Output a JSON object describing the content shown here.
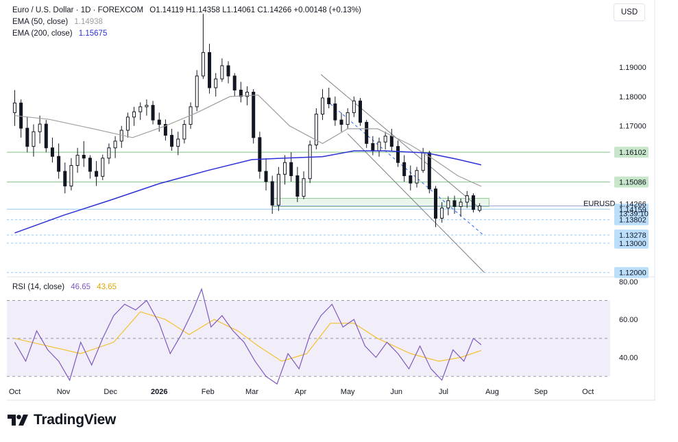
{
  "header": {
    "symbol": "Euro / U.S. Dollar · 1D · FOREXCOM",
    "ohlc": "O1.14119  H1.14358  L1.14061  C1.14266  +0.00148 (+0.13%)",
    "ema50_label": "EMA (50, close)",
    "ema50_value": "1.14938",
    "ema200_label": "EMA (200, close)",
    "ema200_value": "1.15675",
    "rsi_label": "RSI (14, close)",
    "rsi_value": "46.65",
    "rsi_ma_value": "43.65"
  },
  "currency_button": "USD",
  "brand": "TradingView",
  "colors": {
    "up": "#131722",
    "ema50": "#9e9e9e",
    "ema200": "#2b2fd6",
    "rsi": "#7e57c2",
    "rsi_ma": "#f2c22e",
    "support": "#81c784",
    "rsi_band": "#ede7f6"
  },
  "chart_data": {
    "type": "candlestick",
    "title": "Euro / U.S. Dollar · 1D · FOREXCOM",
    "x_tick_labels": [
      "Oct",
      "Nov",
      "Dec",
      "2026",
      "Feb",
      "Mar",
      "Apr",
      "May",
      "Jun",
      "Jul",
      "Aug",
      "Sep",
      "Oct"
    ],
    "price_axis": {
      "ticks": [
        1.19,
        1.18,
        1.17
      ],
      "tick_labels": [
        "1.19000",
        "1.18000",
        "1.17000"
      ],
      "range": [
        1.119,
        1.2115
      ]
    },
    "price_labels": [
      {
        "label": "1.16102",
        "value": 1.16102,
        "kind": "green"
      },
      {
        "label": "1.15086",
        "value": 1.15086,
        "kind": "green"
      },
      {
        "label": "1.14159",
        "value": 1.14159,
        "kind": "blue"
      },
      {
        "label": "1.13802",
        "value": 1.13802,
        "kind": "blue"
      },
      {
        "label": "1.13278",
        "value": 1.13278,
        "kind": "blue"
      },
      {
        "label": "1.13000",
        "value": 1.13,
        "kind": "blue"
      },
      {
        "label": "1.12000",
        "value": 1.12,
        "kind": "blue"
      }
    ],
    "last_price": {
      "symbol": "EURUSD",
      "value": "1.14266",
      "countdown": "13:39:10"
    },
    "horizontal_levels": [
      1.16102,
      1.15086,
      1.14159,
      1.13802,
      1.13278,
      1.12
    ],
    "zone": {
      "low": 1.1425,
      "high": 1.1453
    },
    "channel_lines": [
      {
        "from": {
          "x": "2026-04-14",
          "y": 1.1875
        },
        "to": {
          "x": "2026-07-25",
          "y": 1.1415
        },
        "style": "solid"
      },
      {
        "from": {
          "x": "2026-04-20",
          "y": 1.1775
        },
        "to": {
          "x": "2026-07-27",
          "y": 1.1325
        },
        "style": "dashed"
      },
      {
        "from": {
          "x": "2026-05-01",
          "y": 1.1673
        },
        "to": {
          "x": "2026-07-27",
          "y": 1.12
        },
        "style": "solid"
      }
    ],
    "candles_approx": [
      [
        "2025-10-01",
        1.1745,
        1.1822,
        1.17,
        1.1778
      ],
      [
        "2025-10-05",
        1.1778,
        1.179,
        1.166,
        1.1692
      ],
      [
        "2025-10-09",
        1.1692,
        1.173,
        1.161,
        1.163
      ],
      [
        "2025-10-13",
        1.163,
        1.1705,
        1.1595,
        1.168
      ],
      [
        "2025-10-17",
        1.168,
        1.1735,
        1.164,
        1.1706
      ],
      [
        "2025-10-21",
        1.1706,
        1.172,
        1.161,
        1.1625
      ],
      [
        "2025-10-25",
        1.1625,
        1.166,
        1.1575,
        1.1596
      ],
      [
        "2025-10-29",
        1.1596,
        1.164,
        1.152,
        1.1545
      ],
      [
        "2025-11-02",
        1.1545,
        1.1575,
        1.147,
        1.1495
      ],
      [
        "2025-11-06",
        1.1495,
        1.159,
        1.148,
        1.1565
      ],
      [
        "2025-11-10",
        1.1565,
        1.1625,
        1.154,
        1.16
      ],
      [
        "2025-11-14",
        1.16,
        1.1648,
        1.156,
        1.159
      ],
      [
        "2025-11-18",
        1.159,
        1.16,
        1.152,
        1.1545
      ],
      [
        "2025-11-22",
        1.1545,
        1.158,
        1.1495,
        1.1528
      ],
      [
        "2025-11-26",
        1.1528,
        1.1602,
        1.1515,
        1.159
      ],
      [
        "2025-11-30",
        1.159,
        1.164,
        1.157,
        1.1625
      ],
      [
        "2025-12-04",
        1.1625,
        1.1665,
        1.159,
        1.1648
      ],
      [
        "2025-12-08",
        1.1648,
        1.17,
        1.1625,
        1.1685
      ],
      [
        "2025-12-12",
        1.1685,
        1.1745,
        1.166,
        1.173
      ],
      [
        "2025-12-16",
        1.173,
        1.1765,
        1.17,
        1.1748
      ],
      [
        "2025-12-20",
        1.1748,
        1.178,
        1.172,
        1.1765
      ],
      [
        "2025-12-24",
        1.1765,
        1.179,
        1.1735,
        1.177
      ],
      [
        "2025-12-28",
        1.177,
        1.1785,
        1.1705,
        1.172
      ],
      [
        "2026-01-01",
        1.172,
        1.1745,
        1.168,
        1.1705
      ],
      [
        "2026-01-05",
        1.1705,
        1.1722,
        1.165,
        1.1668
      ],
      [
        "2026-01-09",
        1.1668,
        1.169,
        1.1615,
        1.163
      ],
      [
        "2026-01-13",
        1.163,
        1.168,
        1.16,
        1.1655
      ],
      [
        "2026-01-17",
        1.1655,
        1.172,
        1.164,
        1.1705
      ],
      [
        "2026-01-21",
        1.1705,
        1.178,
        1.169,
        1.1765
      ],
      [
        "2026-01-25",
        1.1765,
        1.189,
        1.175,
        1.187
      ],
      [
        "2026-01-29",
        1.187,
        1.2082,
        1.186,
        1.195
      ],
      [
        "2026-02-02",
        1.195,
        1.198,
        1.181,
        1.183
      ],
      [
        "2026-02-06",
        1.183,
        1.188,
        1.18,
        1.186
      ],
      [
        "2026-02-10",
        1.186,
        1.193,
        1.185,
        1.1905
      ],
      [
        "2026-02-14",
        1.1905,
        1.192,
        1.1845,
        1.187
      ],
      [
        "2026-02-18",
        1.187,
        1.188,
        1.18,
        1.1822
      ],
      [
        "2026-02-22",
        1.1822,
        1.185,
        1.178,
        1.18
      ],
      [
        "2026-02-26",
        1.18,
        1.1835,
        1.177,
        1.1815
      ],
      [
        "2026-03-02",
        1.1815,
        1.1825,
        1.164,
        1.166
      ],
      [
        "2026-03-06",
        1.166,
        1.168,
        1.152,
        1.1545
      ],
      [
        "2026-03-10",
        1.1545,
        1.159,
        1.148,
        1.151
      ],
      [
        "2026-03-14",
        1.151,
        1.153,
        1.14,
        1.143
      ],
      [
        "2026-03-18",
        1.143,
        1.156,
        1.141,
        1.1535
      ],
      [
        "2026-03-22",
        1.1535,
        1.16,
        1.15,
        1.1575
      ],
      [
        "2026-03-26",
        1.1575,
        1.161,
        1.151,
        1.153
      ],
      [
        "2026-03-30",
        1.153,
        1.156,
        1.144,
        1.146
      ],
      [
        "2026-04-03",
        1.146,
        1.1545,
        1.145,
        1.152
      ],
      [
        "2026-04-07",
        1.152,
        1.165,
        1.1505,
        1.1635
      ],
      [
        "2026-04-11",
        1.1635,
        1.176,
        1.162,
        1.174
      ],
      [
        "2026-04-15",
        1.174,
        1.1825,
        1.172,
        1.1795
      ],
      [
        "2026-04-19",
        1.1795,
        1.183,
        1.176,
        1.1775
      ],
      [
        "2026-04-23",
        1.1775,
        1.18,
        1.17,
        1.172
      ],
      [
        "2026-04-27",
        1.172,
        1.1745,
        1.168,
        1.1705
      ],
      [
        "2026-05-01",
        1.1705,
        1.176,
        1.169,
        1.1745
      ],
      [
        "2026-05-05",
        1.1745,
        1.18,
        1.173,
        1.1785
      ],
      [
        "2026-05-09",
        1.1785,
        1.1795,
        1.17,
        1.1712
      ],
      [
        "2026-05-13",
        1.1712,
        1.172,
        1.1625,
        1.164
      ],
      [
        "2026-05-17",
        1.164,
        1.1665,
        1.16,
        1.1615
      ],
      [
        "2026-05-21",
        1.1615,
        1.166,
        1.1595,
        1.1645
      ],
      [
        "2026-05-25",
        1.1645,
        1.168,
        1.162,
        1.1665
      ],
      [
        "2026-05-29",
        1.1665,
        1.169,
        1.1615,
        1.163
      ],
      [
        "2026-06-02",
        1.163,
        1.165,
        1.156,
        1.1575
      ],
      [
        "2026-06-06",
        1.1575,
        1.16,
        1.151,
        1.153
      ],
      [
        "2026-06-10",
        1.153,
        1.1565,
        1.148,
        1.1505
      ],
      [
        "2026-06-14",
        1.1505,
        1.156,
        1.149,
        1.1548
      ],
      [
        "2026-06-18",
        1.1548,
        1.1625,
        1.154,
        1.1608
      ],
      [
        "2026-06-22",
        1.1608,
        1.1615,
        1.147,
        1.1485
      ],
      [
        "2026-06-26",
        1.1485,
        1.1495,
        1.1355,
        1.1385
      ],
      [
        "2026-06-30",
        1.1385,
        1.144,
        1.137,
        1.142
      ],
      [
        "2026-07-04",
        1.142,
        1.146,
        1.1395,
        1.1445
      ],
      [
        "2026-07-08",
        1.1445,
        1.1462,
        1.14,
        1.1425
      ],
      [
        "2026-07-12",
        1.1425,
        1.1452,
        1.139,
        1.144
      ],
      [
        "2026-07-16",
        1.144,
        1.1478,
        1.142,
        1.1462
      ],
      [
        "2026-07-20",
        1.1462,
        1.147,
        1.1405,
        1.1415
      ],
      [
        "2026-07-24",
        1.1412,
        1.1436,
        1.1406,
        1.1427
      ]
    ],
    "ema50_approx": [
      [
        "2025-10-01",
        1.1735
      ],
      [
        "2025-10-23",
        1.1722
      ],
      [
        "2025-11-20",
        1.169
      ],
      [
        "2025-12-15",
        1.166
      ],
      [
        "2026-01-05",
        1.17
      ],
      [
        "2026-01-25",
        1.1745
      ],
      [
        "2026-02-15",
        1.18
      ],
      [
        "2026-03-05",
        1.1805
      ],
      [
        "2026-03-25",
        1.17
      ],
      [
        "2026-04-15",
        1.164
      ],
      [
        "2026-05-01",
        1.169
      ],
      [
        "2026-05-20",
        1.169
      ],
      [
        "2026-06-10",
        1.1635
      ],
      [
        "2026-06-25",
        1.1585
      ],
      [
        "2026-07-10",
        1.153
      ],
      [
        "2026-07-25",
        1.1494
      ]
    ],
    "ema200_approx": [
      [
        "2025-10-01",
        1.1335
      ],
      [
        "2025-11-01",
        1.1395
      ],
      [
        "2025-12-01",
        1.1447
      ],
      [
        "2026-01-01",
        1.1503
      ],
      [
        "2026-02-01",
        1.1548
      ],
      [
        "2026-03-01",
        1.1585
      ],
      [
        "2026-03-22",
        1.159
      ],
      [
        "2026-04-15",
        1.1595
      ],
      [
        "2026-05-05",
        1.1615
      ],
      [
        "2026-05-25",
        1.1615
      ],
      [
        "2026-06-20",
        1.1608
      ],
      [
        "2026-07-10",
        1.1586
      ],
      [
        "2026-07-25",
        1.1567
      ]
    ],
    "rsi_axis": {
      "ticks": [
        80,
        60,
        40
      ],
      "tick_labels": [
        "80.00",
        "60.00",
        "40.00"
      ],
      "range": [
        29,
        81
      ],
      "band": [
        30,
        70
      ]
    },
    "rsi_approx": [
      [
        "2025-10-01",
        48
      ],
      [
        "2025-10-08",
        38
      ],
      [
        "2025-10-15",
        54
      ],
      [
        "2025-10-22",
        44
      ],
      [
        "2025-10-29",
        38
      ],
      [
        "2025-11-05",
        28
      ],
      [
        "2025-11-12",
        48
      ],
      [
        "2025-11-19",
        36
      ],
      [
        "2025-11-26",
        50
      ],
      [
        "2025-12-03",
        62
      ],
      [
        "2025-12-10",
        68
      ],
      [
        "2025-12-17",
        65
      ],
      [
        "2025-12-24",
        70
      ],
      [
        "2026-01-01",
        58
      ],
      [
        "2026-01-08",
        42
      ],
      [
        "2026-01-15",
        52
      ],
      [
        "2026-01-22",
        64
      ],
      [
        "2026-01-28",
        76
      ],
      [
        "2026-02-03",
        56
      ],
      [
        "2026-02-10",
        62
      ],
      [
        "2026-02-17",
        54
      ],
      [
        "2026-02-24",
        48
      ],
      [
        "2026-03-03",
        38
      ],
      [
        "2026-03-10",
        30
      ],
      [
        "2026-03-17",
        26
      ],
      [
        "2026-03-24",
        42
      ],
      [
        "2026-03-31",
        34
      ],
      [
        "2026-04-07",
        52
      ],
      [
        "2026-04-14",
        62
      ],
      [
        "2026-04-21",
        68
      ],
      [
        "2026-04-28",
        56
      ],
      [
        "2026-05-05",
        60
      ],
      [
        "2026-05-12",
        46
      ],
      [
        "2026-05-19",
        40
      ],
      [
        "2026-05-26",
        48
      ],
      [
        "2026-06-02",
        42
      ],
      [
        "2026-06-09",
        34
      ],
      [
        "2026-06-16",
        46
      ],
      [
        "2026-06-23",
        34
      ],
      [
        "2026-06-30",
        28
      ],
      [
        "2026-07-07",
        44
      ],
      [
        "2026-07-14",
        38
      ],
      [
        "2026-07-20",
        50
      ],
      [
        "2026-07-25",
        46.65
      ]
    ],
    "rsi_ma_approx": [
      [
        "2025-10-01",
        50
      ],
      [
        "2025-10-22",
        46
      ],
      [
        "2025-11-12",
        42
      ],
      [
        "2025-12-03",
        48
      ],
      [
        "2025-12-20",
        64
      ],
      [
        "2026-01-05",
        60
      ],
      [
        "2026-01-20",
        52
      ],
      [
        "2026-02-05",
        60
      ],
      [
        "2026-02-20",
        54
      ],
      [
        "2026-03-05",
        46
      ],
      [
        "2026-03-20",
        38
      ],
      [
        "2026-04-05",
        42
      ],
      [
        "2026-04-20",
        58
      ],
      [
        "2026-05-05",
        58
      ],
      [
        "2026-05-20",
        50
      ],
      [
        "2026-06-10",
        42
      ],
      [
        "2026-06-28",
        38
      ],
      [
        "2026-07-12",
        40
      ],
      [
        "2026-07-25",
        43.65
      ]
    ]
  }
}
